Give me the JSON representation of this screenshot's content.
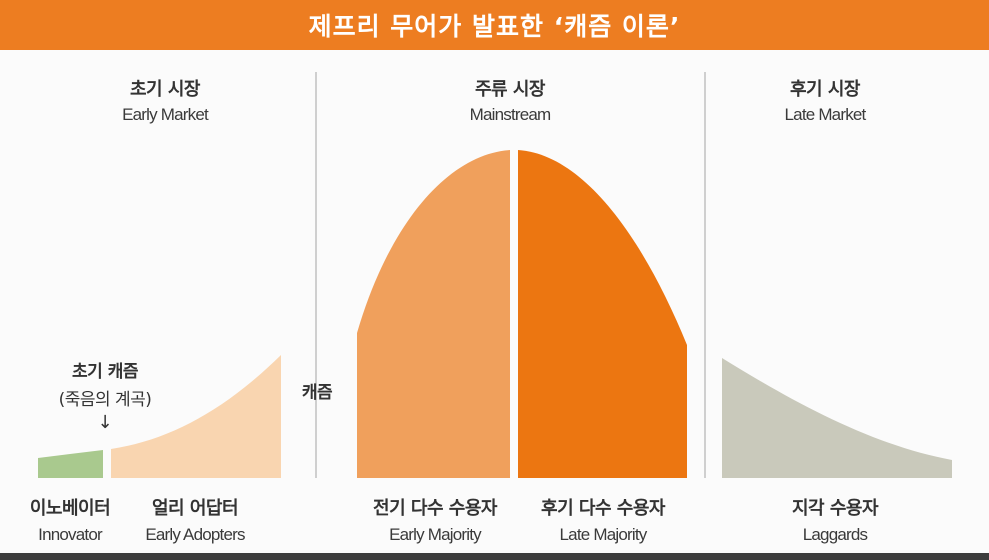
{
  "title": "제프리 무어가 발표한 ‘캐즘 이론’",
  "markets": {
    "early": {
      "ko": "초기 시장",
      "en": "Early Market"
    },
    "mainstream": {
      "ko": "주류 시장",
      "en": "Mainstream"
    },
    "late": {
      "ko": "후기 시장",
      "en": "Late Market"
    }
  },
  "chasm_label": "캐즘",
  "early_chasm": {
    "line1": "초기 캐즘",
    "line2": "(죽음의 계곡)",
    "arrow": "↓"
  },
  "segments": {
    "innovator": {
      "ko": "이노베이터",
      "en": "Innovator"
    },
    "early_adopters": {
      "ko": "얼리 어답터",
      "en": "Early Adopters"
    },
    "early_majority": {
      "ko": "전기 다수 수용자",
      "en": "Early Majority"
    },
    "late_majority": {
      "ko": "후기 다수 수용자",
      "en": "Late Majority"
    },
    "laggards": {
      "ko": "지각 수용자",
      "en": "Laggards"
    }
  },
  "colors": {
    "brand_orange": "#ed7d21",
    "innovator": "#a9c98e",
    "early_adopters": "#f9d5b0",
    "early_majority": "#f0a05c",
    "late_majority": "#ec7611",
    "laggards": "#c9c9bb",
    "divider": "#cfcfcf"
  }
}
